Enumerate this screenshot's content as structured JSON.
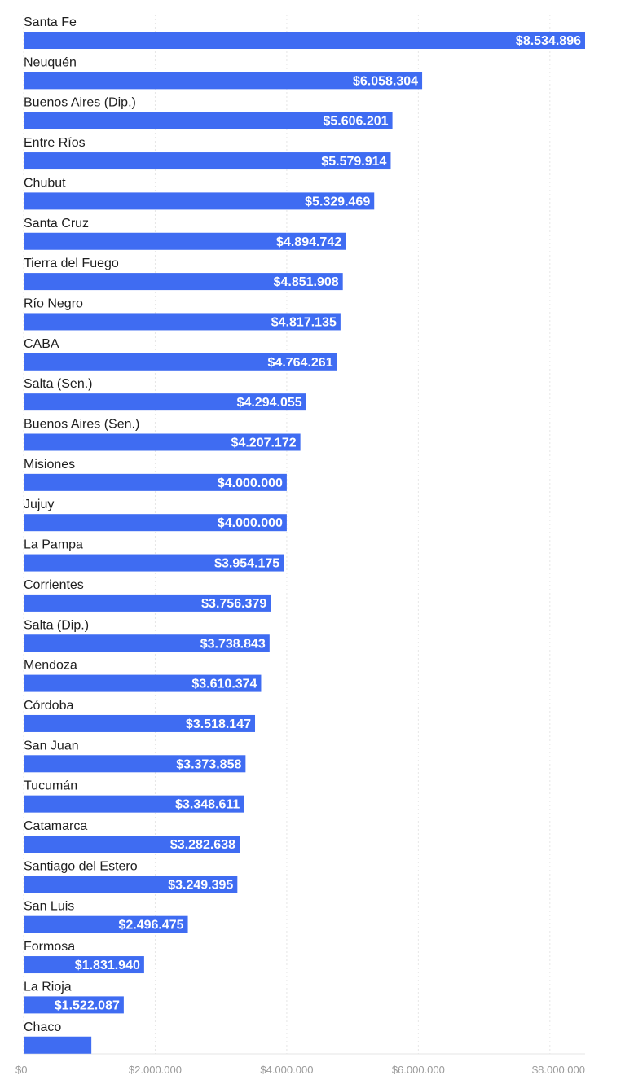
{
  "chart_data": {
    "type": "bar",
    "orientation": "horizontal",
    "categories": [
      "Santa Fe",
      "Neuquén",
      "Buenos Aires (Dip.)",
      "Entre Ríos",
      "Chubut",
      "Santa Cruz",
      "Tierra del Fuego",
      "Río Negro",
      "CABA",
      "Salta (Sen.)",
      "Buenos Aires (Sen.)",
      "Misiones",
      "Jujuy",
      "La Pampa",
      "Corrientes",
      "Salta (Dip.)",
      "Mendoza",
      "Córdoba",
      "San Juan",
      "Tucumán",
      "Catamarca",
      "Santiago del Estero",
      "San Luis",
      "Formosa",
      "La Rioja",
      "Chaco"
    ],
    "values": [
      8534896,
      6058304,
      5606201,
      5579914,
      5329469,
      4894742,
      4851908,
      4817135,
      4764261,
      4294055,
      4207172,
      4000000,
      4000000,
      3954175,
      3756379,
      3738843,
      3610374,
      3518147,
      3373858,
      3348611,
      3282638,
      3249395,
      2496475,
      1831940,
      1522087,
      1030000
    ],
    "value_labels": [
      "$8.534.896",
      "$6.058.304",
      "$5.606.201",
      "$5.579.914",
      "$5.329.469",
      "$4.894.742",
      "$4.851.908",
      "$4.817.135",
      "$4.764.261",
      "$4.294.055",
      "$4.207.172",
      "$4.000.000",
      "$4.000.000",
      "$3.954.175",
      "$3.756.379",
      "$3.738.843",
      "$3.610.374",
      "$3.518.147",
      "$3.373.858",
      "$3.348.611",
      "$3.282.638",
      "$3.249.395",
      "$2.496.475",
      "$1.831.940",
      "$1.522.087",
      ""
    ],
    "xlim": [
      0,
      8534896
    ],
    "xticks": [
      0,
      2000000,
      4000000,
      6000000,
      8000000
    ],
    "xtick_labels": [
      "$0",
      "$2.000.000",
      "$4.000.000",
      "$6.000.000",
      "$8.000.000"
    ],
    "title": "",
    "xlabel": "",
    "ylabel": "",
    "grid": true,
    "legend": "none",
    "colors": {
      "bar": "#3f6cf2",
      "bar_label": "#ffffff",
      "category_label": "#1e1e1e",
      "tick_label": "#9a9a9a",
      "grid": "#e6e6e6"
    }
  }
}
